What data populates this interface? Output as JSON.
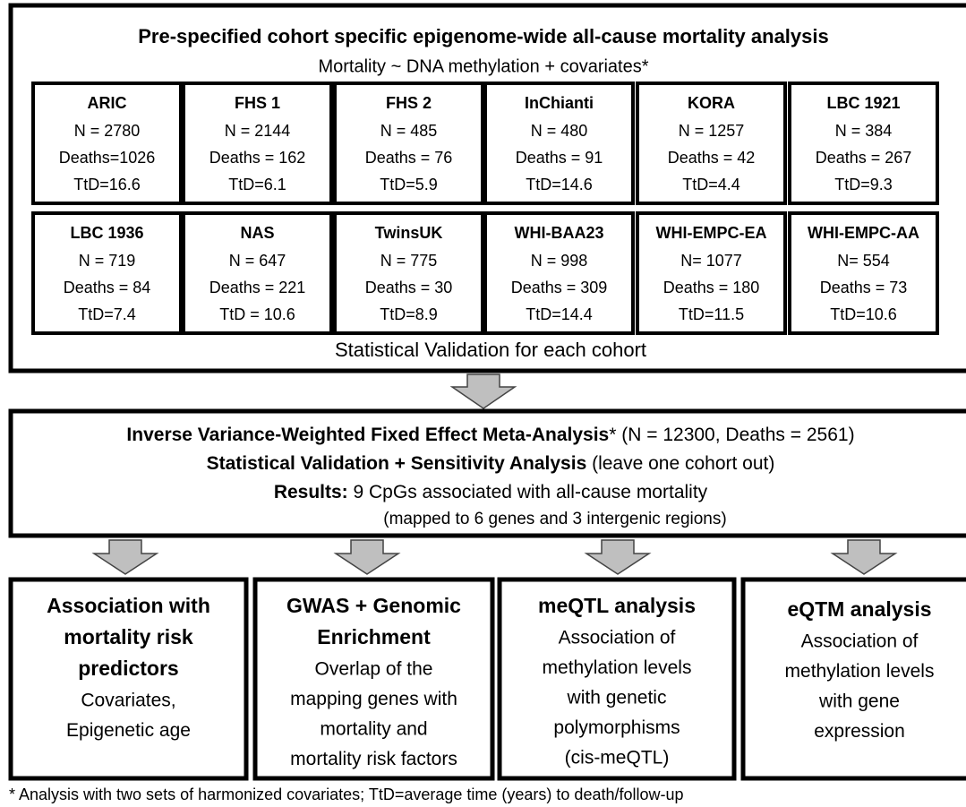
{
  "top": {
    "title": "Pre-specified cohort specific epigenome-wide all-cause mortality analysis",
    "subtitle": "Mortality ~ DNA methylation + covariates*",
    "cohorts": [
      {
        "name": "ARIC",
        "lines": [
          "N = 2780",
          "Deaths=1026",
          "TtD=16.6"
        ]
      },
      {
        "name": "FHS 1",
        "lines": [
          "N = 2144",
          "Deaths = 162",
          "TtD=6.1"
        ]
      },
      {
        "name": "FHS 2",
        "lines": [
          "N = 485",
          "Deaths = 76",
          "TtD=5.9"
        ]
      },
      {
        "name": "InChianti",
        "lines": [
          "N = 480",
          "Deaths = 91",
          "TtD=14.6"
        ]
      },
      {
        "name": "KORA",
        "lines": [
          "N = 1257",
          "Deaths = 42",
          "TtD=4.4"
        ]
      },
      {
        "name": "LBC 1921",
        "lines": [
          "N = 384",
          "Deaths = 267",
          "TtD=9.3"
        ]
      },
      {
        "name": "LBC 1936",
        "lines": [
          "N = 719",
          "Deaths = 84",
          "TtD=7.4"
        ]
      },
      {
        "name": "NAS",
        "lines": [
          "N = 647",
          "Deaths = 221",
          "TtD = 10.6"
        ]
      },
      {
        "name": "TwinsUK",
        "lines": [
          "N = 775",
          "Deaths = 30",
          "TtD=8.9"
        ]
      },
      {
        "name": "WHI-BAA23",
        "lines": [
          "N = 998",
          "Deaths = 309",
          "TtD=14.4"
        ]
      },
      {
        "name": "WHI-EMPC-EA",
        "lines": [
          "N= 1077",
          "Deaths = 180",
          "TtD=11.5"
        ]
      },
      {
        "name": "WHI-EMPC-AA",
        "lines": [
          "N= 554",
          "Deaths = 73",
          "TtD=10.6"
        ]
      }
    ],
    "footer": "Statistical Validation for each cohort"
  },
  "meta": {
    "lines": [
      {
        "bold": "Inverse Variance-Weighted Fixed Effect Meta-Analysis",
        "normal": "* (N = 12300, Deaths = 2561)"
      },
      {
        "bold": "Statistical Validation + Sensitivity Analysis",
        "normal": " (leave one cohort out)"
      },
      {
        "bold": "Results:",
        "normal": " 9 CpGs associated with all-cause mortality"
      },
      {
        "normal": "(mapped to 6 genes and 3 intergenic regions)"
      }
    ]
  },
  "analyses": [
    {
      "title": [
        "Association with",
        "mortality risk",
        "predictors"
      ],
      "body": [
        "Covariates,",
        "Epigenetic age"
      ]
    },
    {
      "title": [
        "GWAS + Genomic",
        "Enrichment"
      ],
      "body": [
        "Overlap of the",
        "mapping genes with",
        "mortality and",
        "mortality risk factors"
      ]
    },
    {
      "title": [
        "meQTL analysis"
      ],
      "body": [
        "Association of",
        "methylation levels",
        "with genetic",
        "polymorphisms",
        "(cis-meQTL)"
      ]
    },
    {
      "title": [
        "eQTM analysis"
      ],
      "body": [
        "Association of",
        "methylation levels",
        "with gene",
        "expression"
      ]
    }
  ],
  "footnote": "* Analysis with two sets of harmonized covariates; TtD=average time (years) to death/follow-up"
}
